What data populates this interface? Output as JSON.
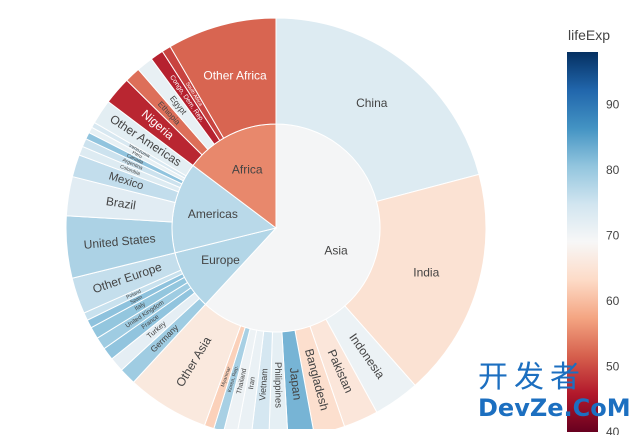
{
  "chart_data": {
    "type": "sunburst",
    "color_scale_title": "lifeExp",
    "color_scale_ticks": [
      40,
      50,
      60,
      70,
      80,
      90
    ],
    "color_scale_range": [
      40,
      98
    ],
    "colorscale": "RdBu",
    "continents": [
      {
        "name": "Asia",
        "lifeExp": 69.5,
        "countries": [
          {
            "name": "China",
            "value": 1318,
            "lifeExp": 73
          },
          {
            "name": "India",
            "value": 1110,
            "lifeExp": 64.7
          },
          {
            "name": "Indonesia",
            "value": 224,
            "lifeExp": 70.7
          },
          {
            "name": "Pakistan",
            "value": 169,
            "lifeExp": 65.5
          },
          {
            "name": "Bangladesh",
            "value": 150,
            "lifeExp": 64.1
          },
          {
            "name": "Japan",
            "value": 127,
            "lifeExp": 82.6
          },
          {
            "name": "Philippines",
            "value": 91,
            "lifeExp": 71.7
          },
          {
            "name": "Vietnam",
            "value": 85,
            "lifeExp": 74.2
          },
          {
            "name": "Iran",
            "value": 69,
            "lifeExp": 71
          },
          {
            "name": "Thailand",
            "value": 65,
            "lifeExp": 70.6
          },
          {
            "name": "Korea, Rep.",
            "value": 49,
            "lifeExp": 78.6
          },
          {
            "name": "Myanmar",
            "value": 47,
            "lifeExp": 62.1
          },
          {
            "name": "Other Asia",
            "value": 400,
            "lifeExp": 66
          }
        ]
      },
      {
        "name": "Europe",
        "lifeExp": 77.6,
        "countries": [
          {
            "name": "Germany",
            "value": 82,
            "lifeExp": 79.4
          },
          {
            "name": "Turkey",
            "value": 71,
            "lifeExp": 71.8
          },
          {
            "name": "France",
            "value": 61,
            "lifeExp": 80.7
          },
          {
            "name": "United Kingdom",
            "value": 60,
            "lifeExp": 79.4
          },
          {
            "name": "Italy",
            "value": 58,
            "lifeExp": 80.5
          },
          {
            "name": "Spain",
            "value": 40,
            "lifeExp": 80.9
          },
          {
            "name": "Poland",
            "value": 38,
            "lifeExp": 75.6
          },
          {
            "name": "Other Europe",
            "value": 176,
            "lifeExp": 76
          }
        ]
      },
      {
        "name": "Americas",
        "lifeExp": 77,
        "countries": [
          {
            "name": "United States",
            "value": 301,
            "lifeExp": 78.2
          },
          {
            "name": "Brazil",
            "value": 190,
            "lifeExp": 72.4
          },
          {
            "name": "Mexico",
            "value": 108,
            "lifeExp": 76.2
          },
          {
            "name": "Colombia",
            "value": 44,
            "lifeExp": 72.9
          },
          {
            "name": "Argentina",
            "value": 40,
            "lifeExp": 75.3
          },
          {
            "name": "Canada",
            "value": 33,
            "lifeExp": 80.7
          },
          {
            "name": "Peru",
            "value": 29,
            "lifeExp": 71.4
          },
          {
            "name": "Venezuela",
            "value": 26,
            "lifeExp": 73.7
          },
          {
            "name": "Other Americas",
            "value": 120,
            "lifeExp": 72
          }
        ]
      },
      {
        "name": "Africa",
        "lifeExp": 55,
        "countries": [
          {
            "name": "Nigeria",
            "value": 135,
            "lifeExp": 46.9
          },
          {
            "name": "Ethiopia",
            "value": 76,
            "lifeExp": 52.9
          },
          {
            "name": "Egypt",
            "value": 80,
            "lifeExp": 71.3
          },
          {
            "name": "Congo, Dem. Rep.",
            "value": 64,
            "lifeExp": 46.5
          },
          {
            "name": "South Africa",
            "value": 44,
            "lifeExp": 49.3
          },
          {
            "name": "Other Africa",
            "value": 530,
            "lifeExp": 52
          }
        ]
      }
    ]
  },
  "watermark": {
    "cn": "开发者",
    "en": "DevZe.CoM"
  }
}
